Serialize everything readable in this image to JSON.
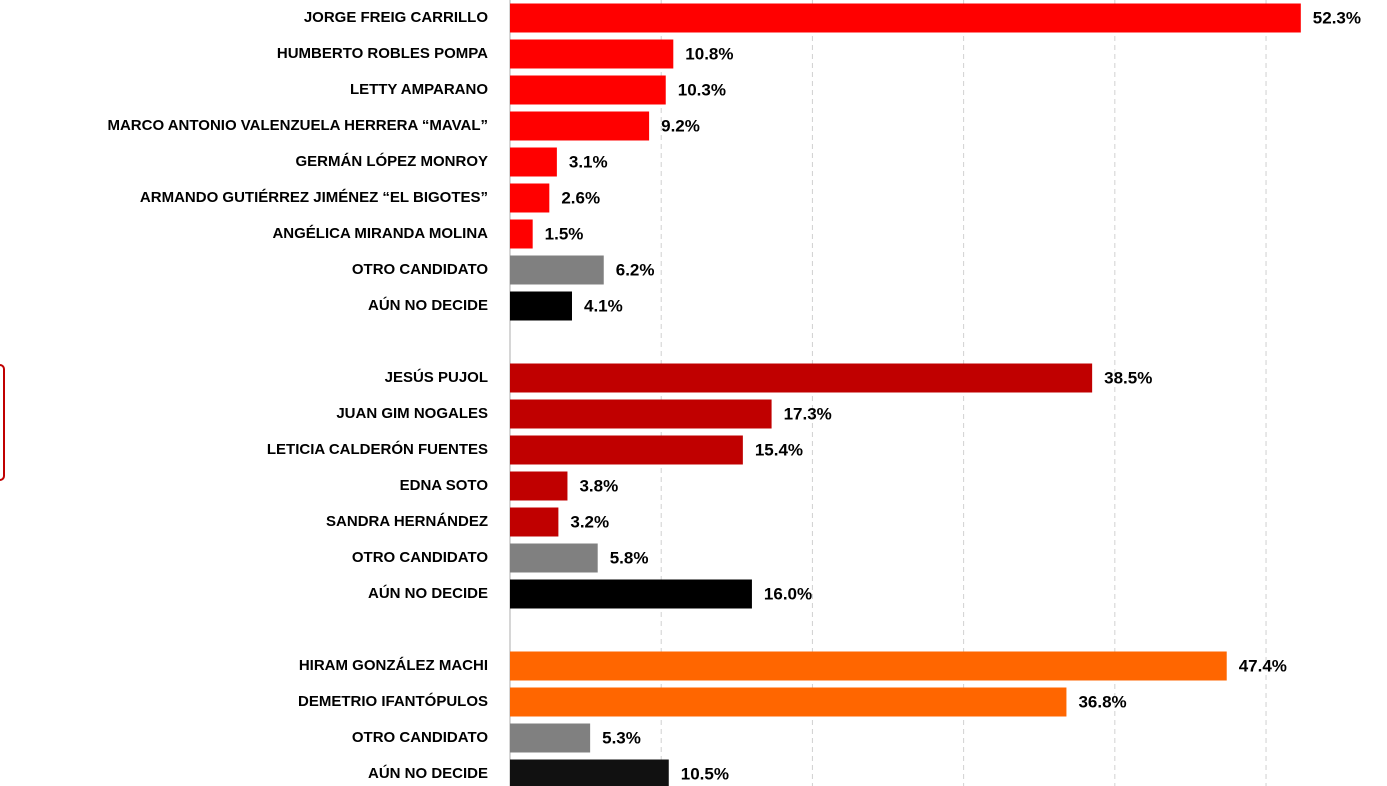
{
  "chart_data": {
    "type": "bar",
    "orientation": "horizontal",
    "categories": [
      "JORGE FREIG CARRILLO",
      "HUMBERTO ROBLES POMPA",
      "LETTY AMPARANO",
      "MARCO ANTONIO VALENZUELA HERRERA “MAVAL”",
      "GERMÁN LÓPEZ MONROY",
      "ARMANDO GUTIÉRREZ JIMÉNEZ “EL BIGOTES”",
      "ANGÉLICA MIRANDA MOLINA",
      "OTRO CANDIDATO",
      "AÚN NO DECIDE",
      null,
      "JESÚS PUJOL",
      "JUAN GIM NOGALES",
      "LETICIA CALDERÓN FUENTES",
      "EDNA SOTO",
      "SANDRA HERNÁNDEZ",
      "OTRO CANDIDATO",
      "AÚN NO DECIDE",
      null,
      "HIRAM GONZÁLEZ MACHI",
      "DEMETRIO IFANTÓPULOS",
      "OTRO CANDIDATO",
      "AÚN NO DECIDE"
    ],
    "values": [
      52.3,
      10.8,
      10.3,
      9.2,
      3.1,
      2.6,
      1.5,
      6.2,
      4.1,
      null,
      38.5,
      17.3,
      15.4,
      3.8,
      3.2,
      5.8,
      16.0,
      null,
      47.4,
      36.8,
      5.3,
      10.5
    ],
    "value_labels": [
      "52.3%",
      "10.8%",
      "10.3%",
      "9.2%",
      "3.1%",
      "2.6%",
      "1.5%",
      "6.2%",
      "4.1%",
      null,
      "38.5%",
      "17.3%",
      "15.4%",
      "3.8%",
      "3.2%",
      "5.8%",
      "16.0%",
      null,
      "47.4%",
      "36.8%",
      "5.3%",
      "10.5%"
    ],
    "colors": [
      "#ff0000",
      "#ff0000",
      "#ff0000",
      "#ff0000",
      "#ff0000",
      "#ff0000",
      "#ff0000",
      "#808080",
      "#000000",
      null,
      "#c00000",
      "#c00000",
      "#c00000",
      "#c00000",
      "#c00000",
      "#808080",
      "#000000",
      null,
      "#ff6600",
      "#ff6600",
      "#808080",
      "#111111"
    ],
    "xlim": [
      0,
      58
    ],
    "xticks": [
      10,
      20,
      30,
      40,
      50
    ],
    "grid": true
  }
}
